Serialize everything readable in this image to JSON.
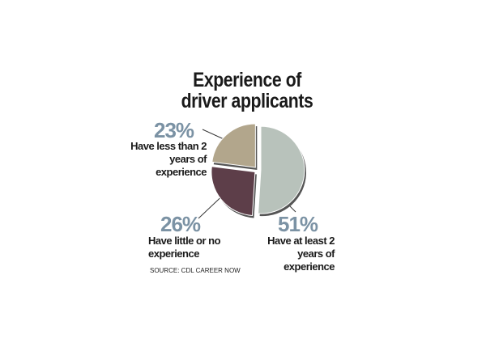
{
  "chart_data": {
    "type": "pie",
    "title": "Experience of driver applicants",
    "categories": [
      "Have at least 2 years of experience",
      "Have little or no experience",
      "Have less than 2 years of experience"
    ],
    "values": [
      51,
      26,
      23
    ],
    "value_labels": [
      "51%",
      "26%",
      "23%"
    ],
    "colors": [
      "#b8c2bb",
      "#5d3e49",
      "#b2a68c"
    ],
    "source": "SOURCE: CDL CAREER NOW"
  }
}
